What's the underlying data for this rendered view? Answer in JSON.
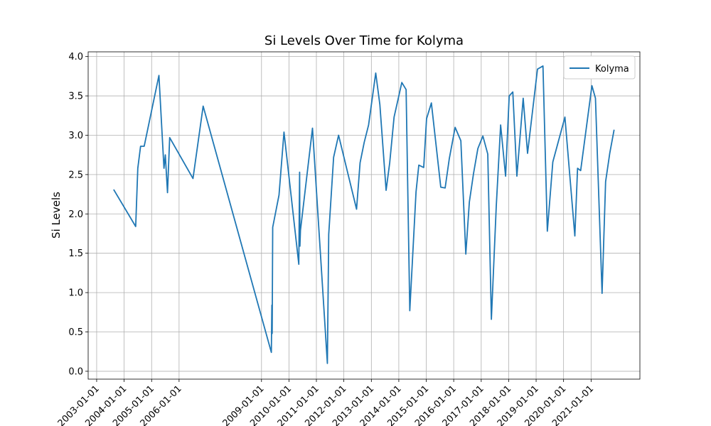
{
  "chart_data": {
    "type": "line",
    "title": "Si Levels Over Time for Kolyma",
    "y_label": "Si Levels",
    "x": [
      "2003-08-15",
      "2004-06-03",
      "2004-07-01",
      "2004-08-07",
      "2004-09-24",
      "2005-04-08",
      "2005-06-14",
      "2005-07-02",
      "2005-07-31",
      "2005-08-29",
      "2006-07-05",
      "2006-11-17",
      "2009-05-12",
      "2009-05-19",
      "2009-05-23",
      "2009-05-30",
      "2009-08-22",
      "2009-10-27",
      "2010-05-12",
      "2010-05-23",
      "2010-05-27",
      "2010-06-03",
      "2010-11-10",
      "2011-05-27",
      "2011-06-14",
      "2011-08-18",
      "2011-10-23",
      "2012-06-18",
      "2012-08-04",
      "2012-09-28",
      "2012-11-25",
      "2013-02-28",
      "2013-04-24",
      "2013-07-16",
      "2013-09-02",
      "2013-10-30",
      "2014-02-10",
      "2014-04-08",
      "2014-05-27",
      "2014-08-18",
      "2014-09-24",
      "2014-11-28",
      "2015-01-05",
      "2015-03-10",
      "2015-07-13",
      "2015-09-09",
      "2015-11-03",
      "2016-01-20",
      "2016-04-05",
      "2016-06-10",
      "2016-07-27",
      "2016-09-20",
      "2016-11-17",
      "2017-01-23",
      "2017-03-29",
      "2017-05-16",
      "2017-07-20",
      "2017-09-16",
      "2017-11-21",
      "2018-01-08",
      "2018-02-25",
      "2018-04-20",
      "2018-07-13",
      "2018-09-09",
      "2019-01-19",
      "2019-04-02",
      "2019-05-30",
      "2019-08-11",
      "2020-01-19",
      "2020-05-30",
      "2020-07-05",
      "2020-08-15",
      "2021-01-12",
      "2021-02-28",
      "2021-05-27",
      "2021-07-13",
      "2021-09-06",
      "2021-11-03"
    ],
    "series": [
      {
        "name": "Kolyma",
        "color": "#1f77b4",
        "values": [
          2.31,
          1.84,
          2.58,
          2.86,
          2.86,
          3.76,
          2.58,
          2.75,
          2.27,
          2.97,
          2.45,
          3.37,
          0.24,
          0.84,
          0.48,
          1.83,
          2.24,
          3.04,
          1.36,
          2.53,
          1.59,
          1.79,
          3.09,
          0.1,
          1.74,
          2.72,
          3.0,
          2.06,
          2.65,
          2.91,
          3.13,
          3.79,
          3.39,
          2.3,
          2.65,
          3.23,
          3.67,
          3.58,
          0.77,
          2.28,
          2.62,
          2.59,
          3.21,
          3.41,
          2.34,
          2.33,
          2.7,
          3.1,
          2.93,
          1.49,
          2.15,
          2.51,
          2.83,
          2.99,
          2.76,
          0.66,
          2.1,
          3.13,
          2.48,
          3.5,
          3.55,
          2.48,
          3.47,
          2.77,
          3.84,
          3.88,
          1.78,
          2.66,
          3.23,
          1.72,
          2.58,
          2.55,
          3.63,
          3.47,
          0.99,
          2.41,
          2.77,
          3.07
        ]
      }
    ],
    "xlim": [
      "2002-09-10",
      "2022-10-12"
    ],
    "xticks": [
      "2003-01-01",
      "2004-01-01",
      "2005-01-01",
      "2006-01-01",
      "2009-01-01",
      "2010-01-01",
      "2011-01-01",
      "2012-01-01",
      "2013-01-01",
      "2014-01-01",
      "2015-01-01",
      "2016-01-01",
      "2017-01-01",
      "2018-01-01",
      "2019-01-01",
      "2020-01-01",
      "2021-01-01"
    ],
    "ylim": [
      -0.1,
      4.06
    ],
    "yticks": [
      {
        "value": 0,
        "label": "0.0"
      },
      0.5,
      {
        "value": 1,
        "label": "1.0"
      },
      1.5,
      {
        "value": 2,
        "label": "2.0"
      },
      2.5,
      {
        "value": 3,
        "label": "3.0"
      },
      3.5,
      {
        "value": 4,
        "label": "4.0"
      }
    ],
    "grid": true,
    "legend": "upper right"
  }
}
